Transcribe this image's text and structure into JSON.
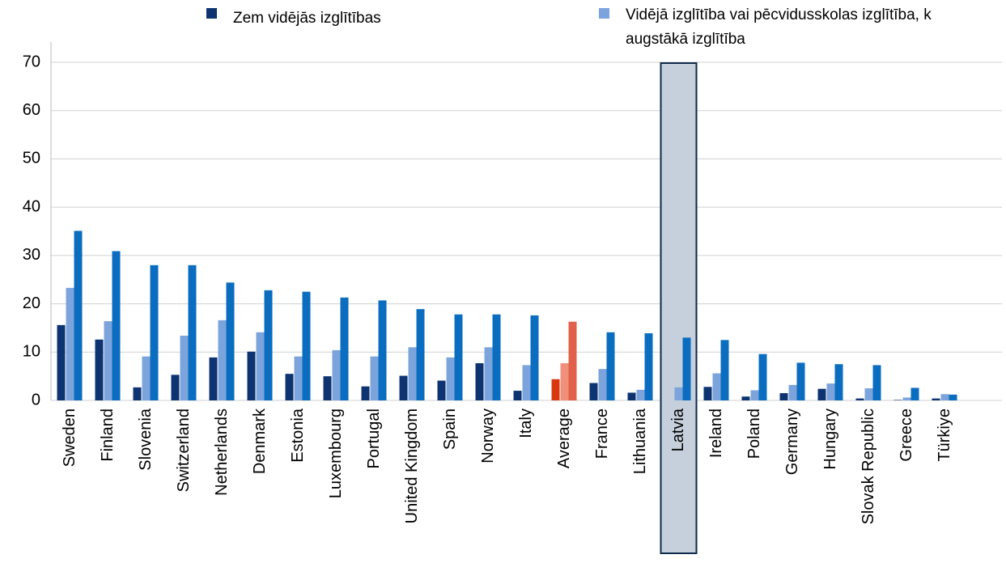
{
  "chart_data": {
    "type": "bar",
    "categories": [
      "Sweden",
      "Finland",
      "Slovenia",
      "Switzerland",
      "Netherlands",
      "Denmark",
      "Estonia",
      "Luxembourg",
      "Portugal",
      "United Kingdom",
      "Spain",
      "Norway",
      "Italy",
      "Average",
      "France",
      "Lithuania",
      "Latvia",
      "Ireland",
      "Poland",
      "Germany",
      "Hungary",
      "Slovak Republic",
      "Greece",
      "Türkiye"
    ],
    "series": [
      {
        "name": "Zem vidējās izglītības",
        "color": "#0d3470",
        "highlight_color": "#d9380f",
        "values": [
          15.6,
          12.6,
          2.7,
          5.3,
          8.9,
          10.1,
          5.5,
          5.0,
          2.9,
          5.1,
          4.1,
          7.7,
          2.0,
          4.4,
          3.6,
          1.6,
          0,
          2.8,
          0.8,
          1.5,
          2.4,
          0.4,
          0.1,
          0.4
        ]
      },
      {
        "name": [
          "Vidējā izglītība vai pēcvidusskolas izglītība, k",
          "augstākā izglītība"
        ],
        "color": "#7ba3dc",
        "highlight_color": "#f0907a",
        "values": [
          23.3,
          16.4,
          9.1,
          13.4,
          16.6,
          14.1,
          9.1,
          10.4,
          9.1,
          11.0,
          8.9,
          11.0,
          7.3,
          7.7,
          6.5,
          2.2,
          2.7,
          5.6,
          2.1,
          3.2,
          3.5,
          2.5,
          0.6,
          1.3
        ]
      },
      {
        "color": "#0b6dbf",
        "highlight_color": "#e0604a",
        "values": [
          35.1,
          30.9,
          28.0,
          28.0,
          24.4,
          22.8,
          22.5,
          21.3,
          20.7,
          18.9,
          17.8,
          17.8,
          17.6,
          16.3,
          14.1,
          13.9,
          13.0,
          12.5,
          9.6,
          7.8,
          7.5,
          7.3,
          2.6,
          1.2
        ]
      }
    ],
    "highlight_category": "Average",
    "box_category": "Latvia",
    "ylim": [
      0,
      70
    ],
    "yticks": [
      0,
      10,
      20,
      30,
      40,
      50,
      60,
      70
    ],
    "grid": true
  }
}
